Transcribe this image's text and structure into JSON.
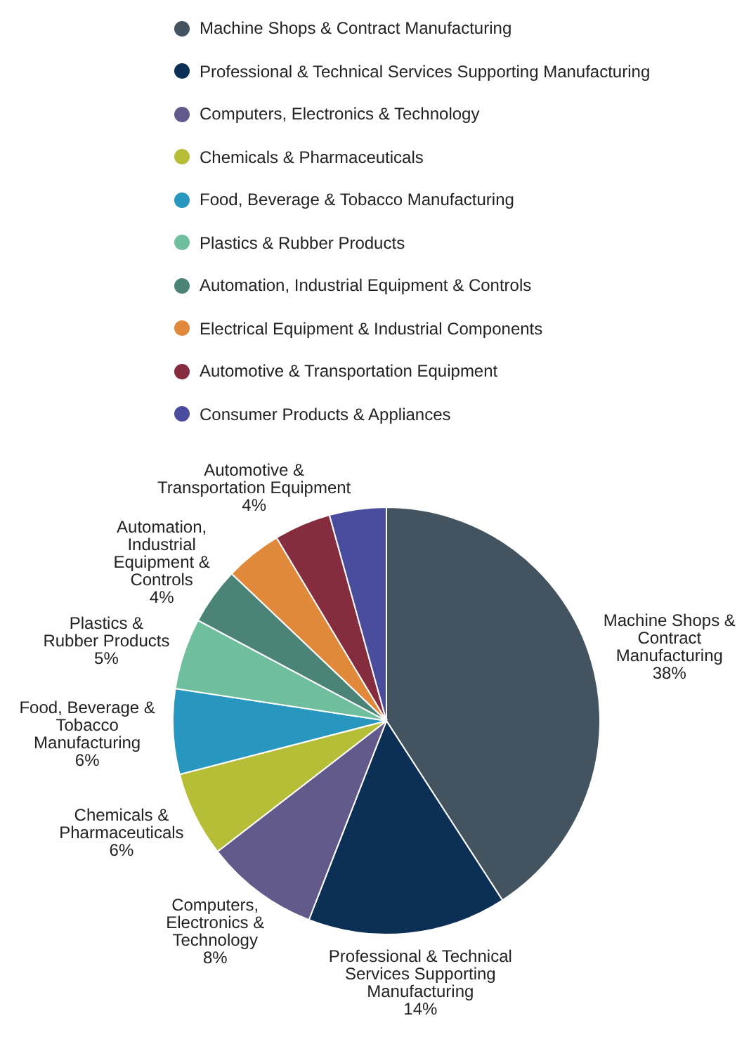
{
  "chart_data": {
    "type": "pie",
    "categories": [
      "Machine Shops & Contract Manufacturing",
      "Professional & Technical Services Supporting Manufacturing",
      "Computers, Electronics & Technology",
      "Chemicals & Pharmaceuticals",
      "Food, Beverage & Tobacco Manufacturing",
      "Plastics & Rubber Products",
      "Automation, Industrial Equipment & Controls",
      "Electrical Equipment & Industrial Components",
      "Automotive & Transportation Equipment",
      "Consumer Products & Appliances"
    ],
    "values": [
      38,
      14,
      8,
      6,
      6,
      5,
      4,
      4,
      4,
      4
    ],
    "value_labels": [
      "38%",
      "14%",
      "8%",
      "6%",
      "6%",
      "5%",
      "4%",
      null,
      "4%",
      null
    ],
    "colors": [
      "#43535f",
      "#0b2f55",
      "#635a8c",
      "#b6bd36",
      "#2797c0",
      "#6fbf9f",
      "#4b8477",
      "#e0893a",
      "#862c3f",
      "#4a4c9e"
    ],
    "legend": "top"
  }
}
